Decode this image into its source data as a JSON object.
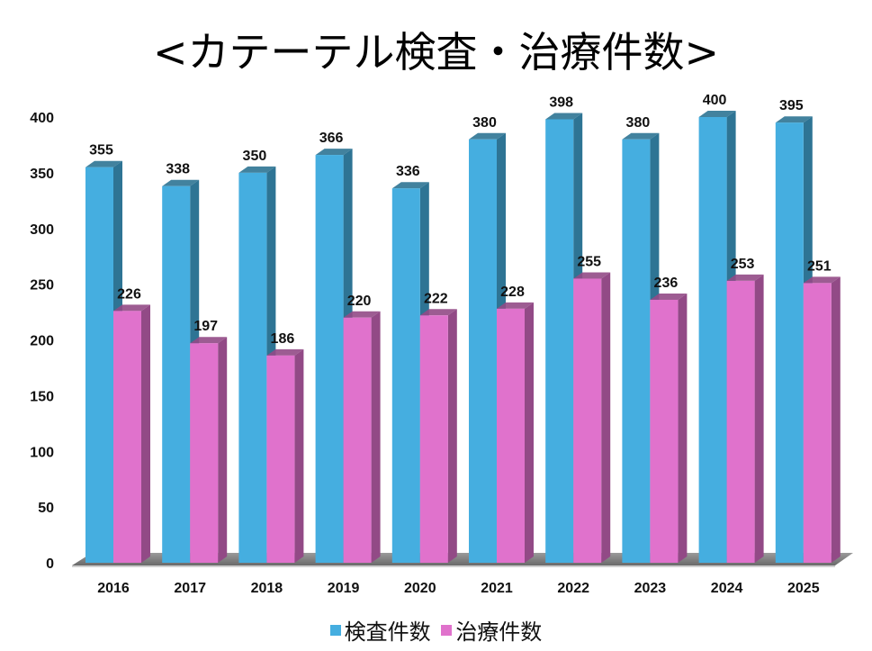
{
  "chart_data": {
    "type": "bar",
    "title": "<カテーテル検査・治療件数>",
    "xlabel": "",
    "ylabel": "",
    "ylim": [
      0,
      400
    ],
    "yticks": [
      0,
      50,
      100,
      150,
      200,
      250,
      300,
      350,
      400
    ],
    "categories": [
      "2016",
      "2017",
      "2018",
      "2019",
      "2020",
      "2021",
      "2022",
      "2023",
      "2024",
      "2025"
    ],
    "series": [
      {
        "name": "検査件数",
        "color": "#45aee0",
        "side_color": "#2e7494",
        "values": [
          355,
          338,
          350,
          366,
          336,
          380,
          398,
          380,
          400,
          395
        ]
      },
      {
        "name": "治療件数",
        "color": "#e072cc",
        "side_color": "#924a86",
        "values": [
          226,
          197,
          186,
          220,
          222,
          228,
          255,
          236,
          253,
          251
        ]
      }
    ],
    "legend_position": "bottom",
    "grid": false,
    "style": "3d-column"
  }
}
